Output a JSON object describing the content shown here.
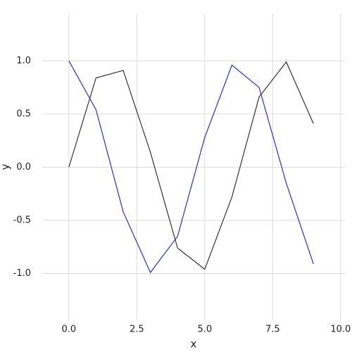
{
  "chart_data": {
    "type": "line",
    "x_label": "x",
    "y_label": "y",
    "x": [
      0,
      1,
      2,
      3,
      4,
      5,
      6,
      7,
      8,
      9
    ],
    "series": [
      {
        "color": "#333333",
        "values": [
          0,
          0.84,
          0.91,
          0.14,
          -0.76,
          -0.96,
          -0.28,
          0.66,
          0.99,
          0.41
        ]
      },
      {
        "color": "#2b2bdd",
        "values": [
          1,
          0.54,
          -0.42,
          -0.99,
          -0.65,
          0.28,
          0.96,
          0.75,
          -0.15,
          -0.91
        ]
      }
    ],
    "xlim": [
      -0.98,
      10.16
    ],
    "ylim": [
      -1.44,
      1.44
    ],
    "xticks": [
      {
        "value": 0,
        "label": "0.0"
      },
      2.5,
      {
        "value": 5,
        "label": "5.0"
      },
      7.5,
      {
        "value": 10,
        "label": "10.0"
      }
    ],
    "yticks": [
      {
        "value": -1,
        "label": "-1.0"
      },
      -0.5,
      {
        "value": 0,
        "label": "0.0"
      },
      0.5,
      {
        "value": 1,
        "label": "1.0"
      }
    ],
    "grid": true
  }
}
